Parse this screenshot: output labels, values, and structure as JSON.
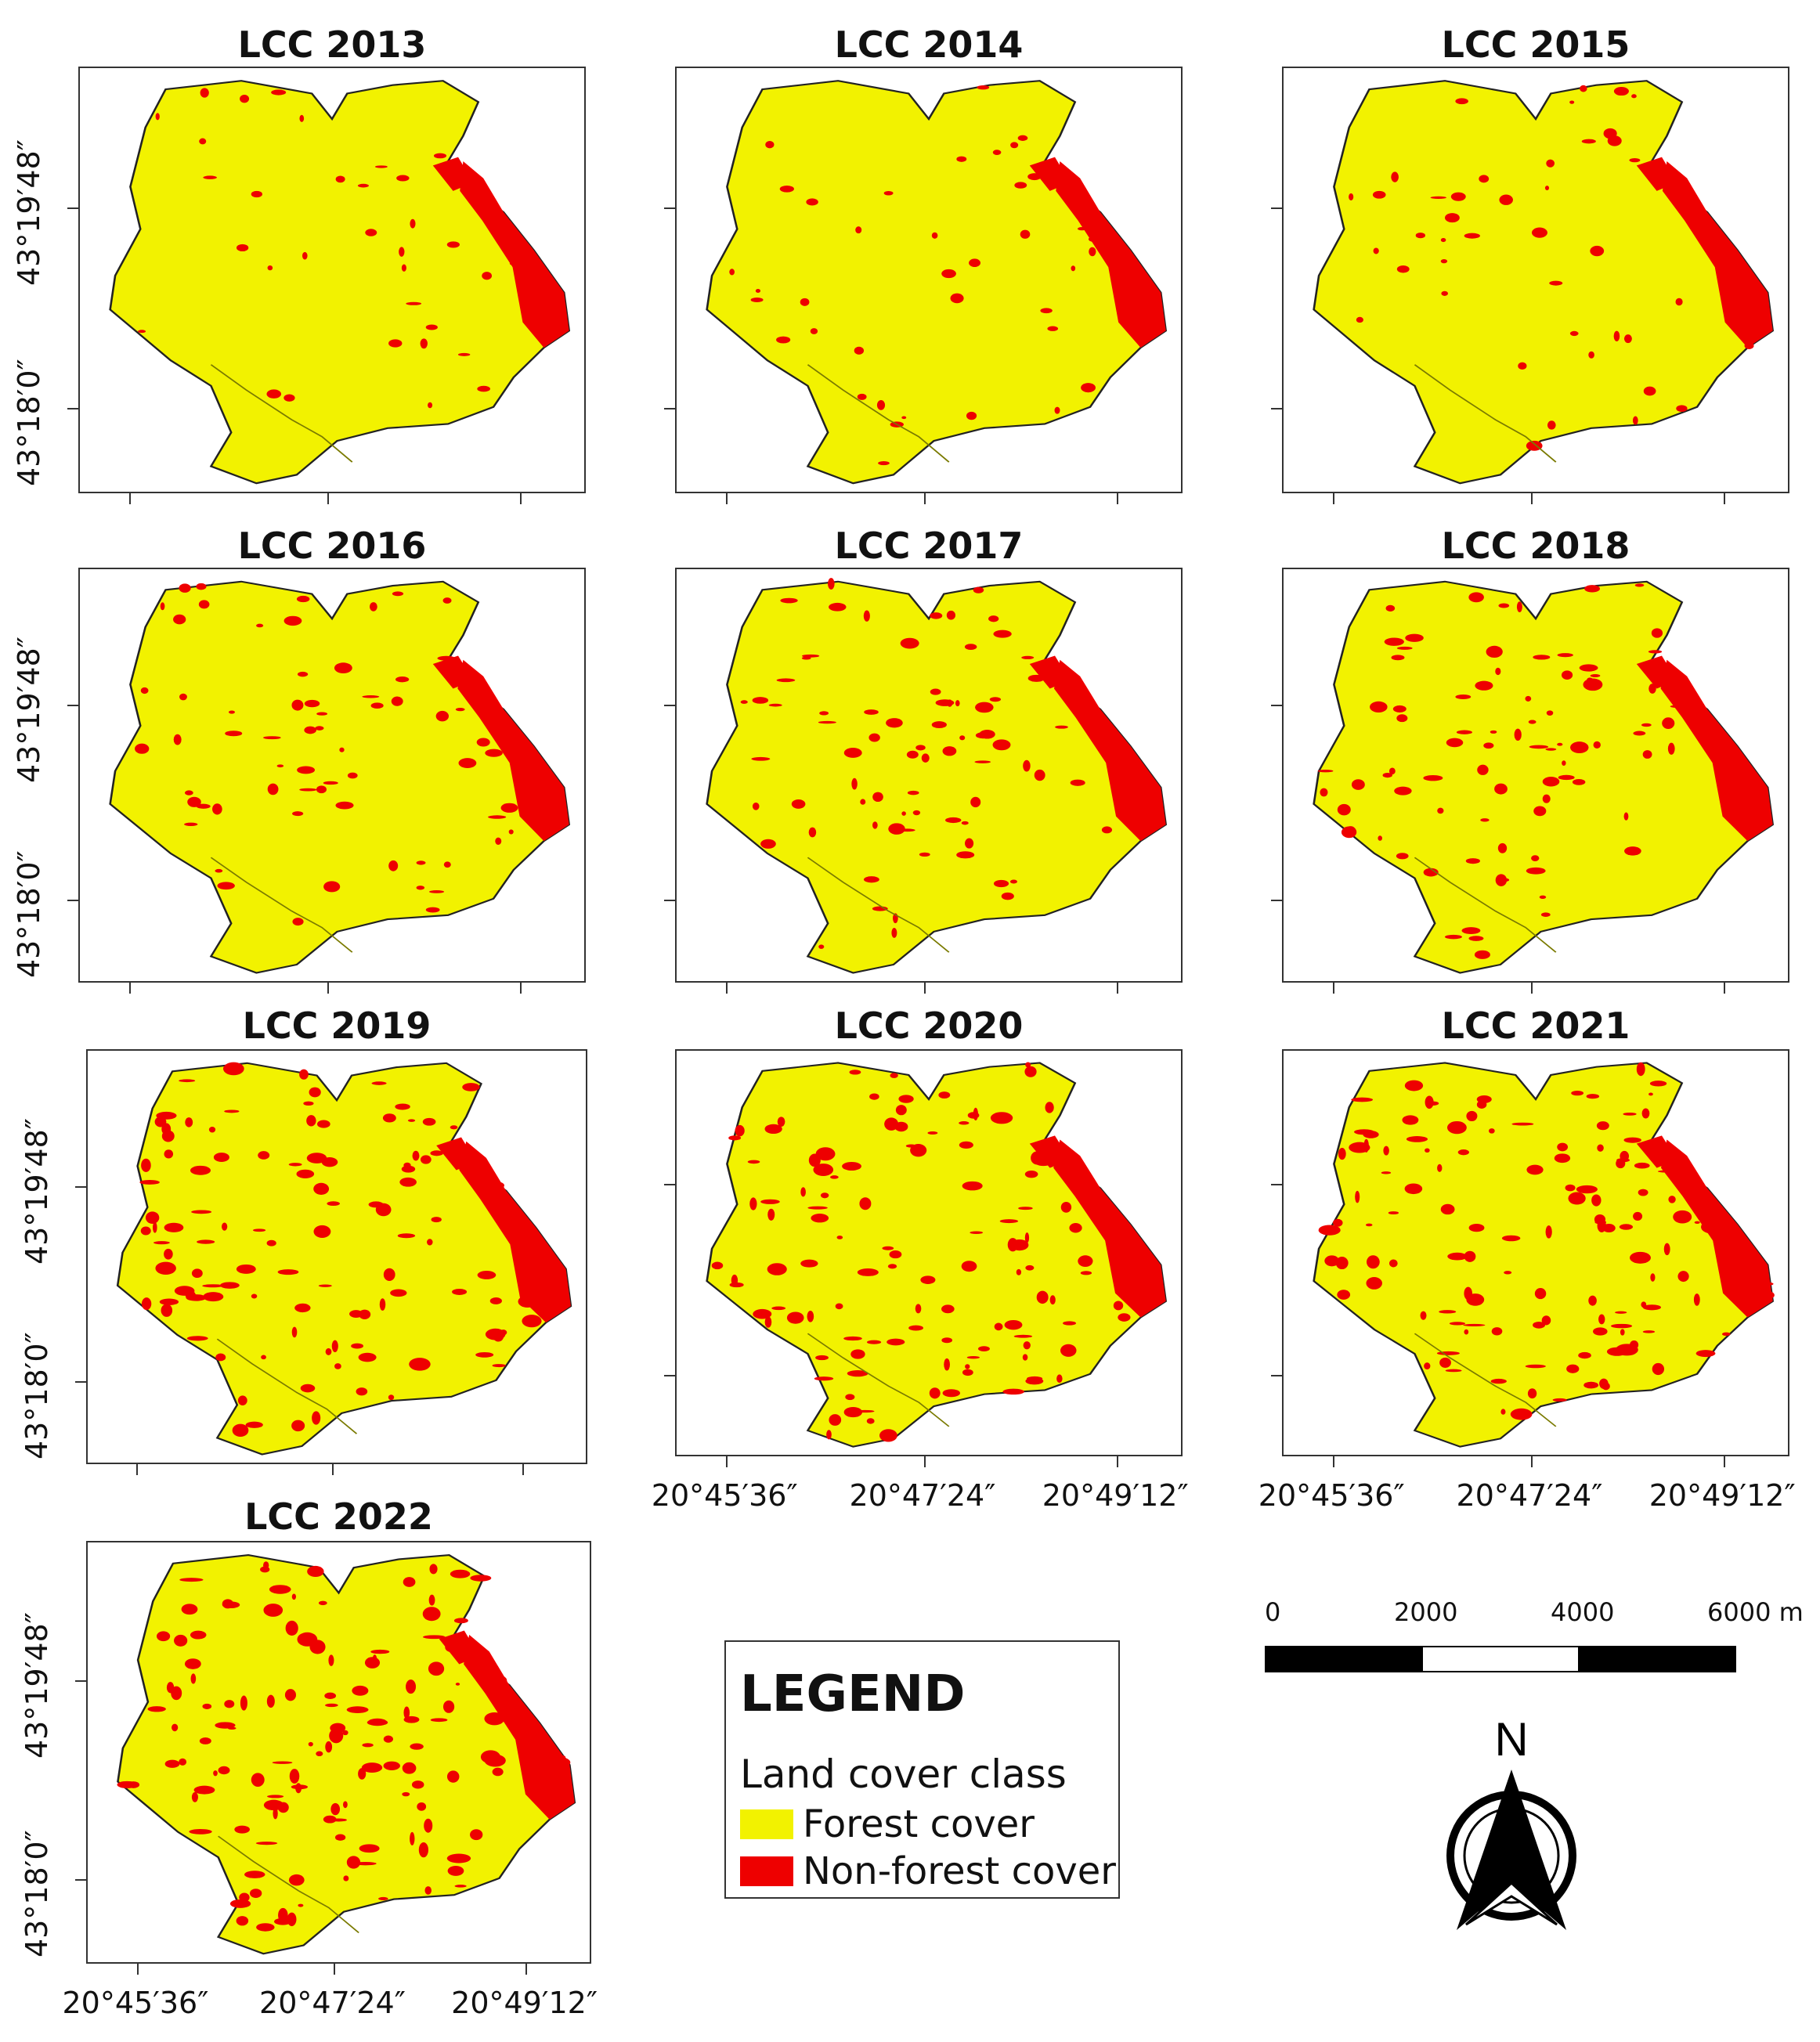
{
  "panels": [
    {
      "title": "LCC 2013",
      "show_y": true,
      "show_x": false,
      "density": 0.1,
      "riverine": 0.55
    },
    {
      "title": "LCC 2014",
      "show_y": false,
      "show_x": false,
      "density": 0.12,
      "riverine": 0.6
    },
    {
      "title": "LCC 2015",
      "show_y": false,
      "show_x": false,
      "density": 0.15,
      "riverine": 0.62
    },
    {
      "title": "LCC 2016",
      "show_y": true,
      "show_x": false,
      "density": 0.28,
      "riverine": 0.7
    },
    {
      "title": "LCC 2017",
      "show_y": false,
      "show_x": false,
      "density": 0.34,
      "riverine": 0.72
    },
    {
      "title": "LCC 2018",
      "show_y": false,
      "show_x": false,
      "density": 0.4,
      "riverine": 0.74
    },
    {
      "title": "LCC 2019",
      "show_y": true,
      "show_x": false,
      "density": 0.55,
      "riverine": 0.8
    },
    {
      "title": "LCC 2020",
      "show_y": false,
      "show_x": true,
      "density": 0.58,
      "riverine": 0.76
    },
    {
      "title": "LCC 2021",
      "show_y": false,
      "show_x": true,
      "density": 0.62,
      "riverine": 0.72
    },
    {
      "title": "LCC 2022",
      "show_y": true,
      "show_x": true,
      "density": 0.7,
      "riverine": 0.7
    }
  ],
  "axes": {
    "y_labels": [
      "43°19′48″",
      "43°18′0″"
    ],
    "x_labels": [
      "20°45′36″",
      "20°47′24″",
      "20°49′12″"
    ]
  },
  "legend": {
    "title": "LEGEND",
    "subtitle": "Land cover class",
    "items": [
      {
        "label": "Forest cover",
        "color": "#f2f200"
      },
      {
        "label": "Non-forest cover",
        "color": "#ee0000"
      }
    ]
  },
  "scale_bar": {
    "labels": [
      "0",
      "2000",
      "4000",
      "6000 m"
    ]
  },
  "north_arrow": {
    "label": "N",
    "icon": "north-arrow-icon"
  },
  "colors": {
    "forest": "#f2f200",
    "non_forest": "#ee0000",
    "outline": "#333333"
  }
}
